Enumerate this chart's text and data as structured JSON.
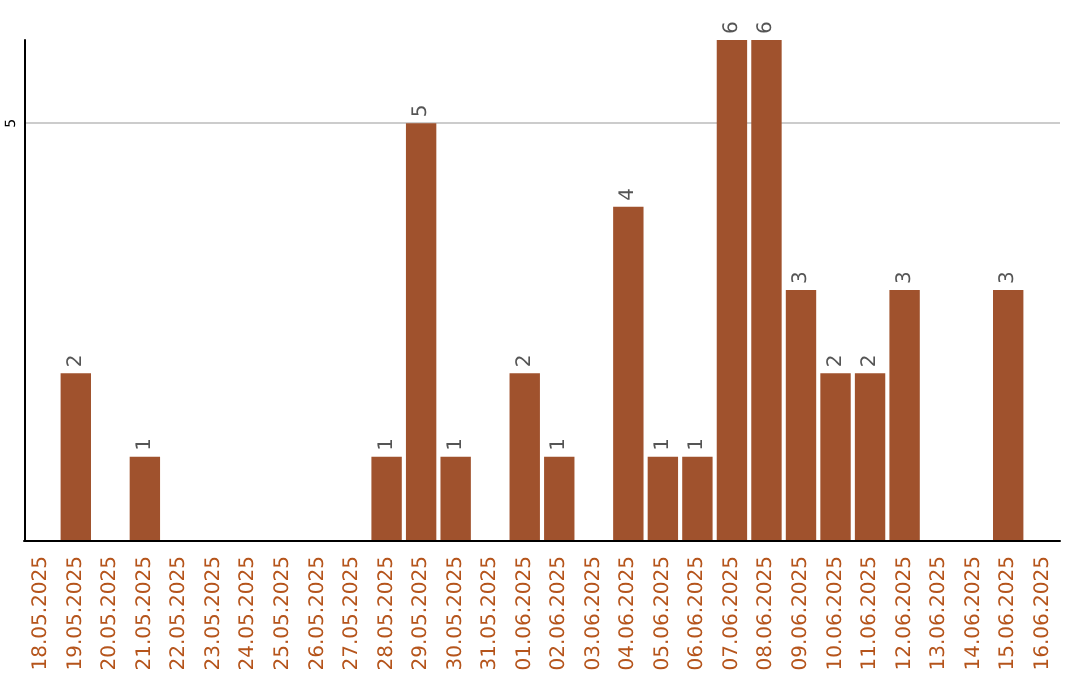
{
  "chart_data": {
    "type": "bar",
    "categories": [
      "18.05.2025",
      "19.05.2025",
      "20.05.2025",
      "21.05.2025",
      "22.05.2025",
      "23.05.2025",
      "24.05.2025",
      "25.05.2025",
      "26.05.2025",
      "27.05.2025",
      "28.05.2025",
      "29.05.2025",
      "30.05.2025",
      "31.05.2025",
      "01.06.2025",
      "02.06.2025",
      "03.06.2025",
      "04.06.2025",
      "05.06.2025",
      "06.06.2025",
      "07.06.2025",
      "08.06.2025",
      "09.06.2025",
      "10.06.2025",
      "11.06.2025",
      "12.06.2025",
      "13.06.2025",
      "14.06.2025",
      "15.06.2025",
      "16.06.2025"
    ],
    "values": [
      0,
      2,
      0,
      1,
      0,
      0,
      0,
      0,
      0,
      0,
      1,
      5,
      1,
      0,
      2,
      1,
      0,
      4,
      1,
      1,
      6,
      6,
      3,
      2,
      2,
      3,
      0,
      0,
      3,
      0
    ],
    "value_labels": [
      null,
      "2",
      null,
      "1",
      null,
      null,
      null,
      null,
      null,
      null,
      "1",
      "5",
      "1",
      null,
      "2",
      "1",
      null,
      "4",
      "1",
      "1",
      "6",
      "6",
      "3",
      "2",
      "2",
      "3",
      null,
      null,
      "3",
      null
    ],
    "color": "#a0522d",
    "ylim": [
      0,
      6
    ],
    "yticks": [
      5
    ],
    "grid": "y"
  }
}
